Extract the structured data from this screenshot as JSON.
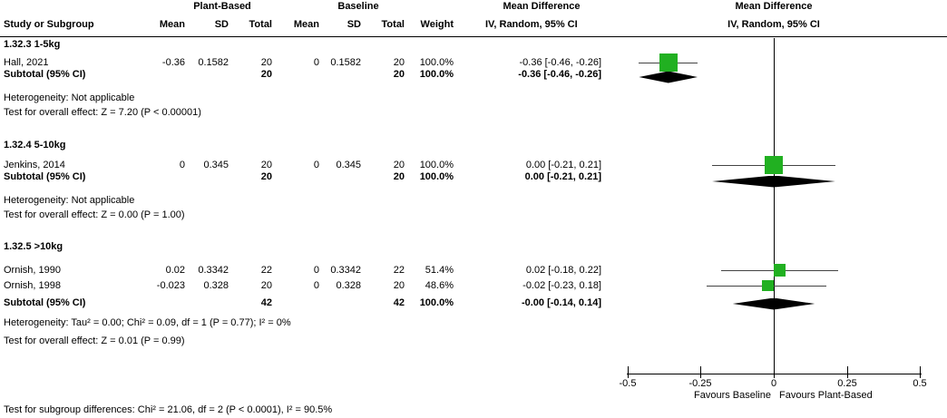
{
  "header": {
    "group_plant": "Plant-Based",
    "group_baseline": "Baseline",
    "md_text_title": "Mean Difference",
    "md_plot_title": "Mean Difference",
    "study_col": "Study or Subgroup",
    "mean1": "Mean",
    "sd1": "SD",
    "total1": "Total",
    "mean2": "Mean",
    "sd2": "SD",
    "total2": "Total",
    "weight": "Weight",
    "iv_text": "IV, Random, 95% CI",
    "iv_plot": "IV, Random, 95% CI"
  },
  "table": {
    "subgroups": [
      {
        "label": "1.32.3 1-5kg",
        "studies": [
          {
            "name": "Hall, 2021",
            "mean1": "-0.36",
            "sd1": "0.1582",
            "total1": "20",
            "mean2": "0",
            "sd2": "0.1582",
            "total2": "20",
            "weight": "100.0%",
            "ci": "-0.36 [-0.46, -0.26]"
          }
        ],
        "subtotal": {
          "label": "Subtotal (95% CI)",
          "total1": "20",
          "total2": "20",
          "weight": "100.0%",
          "ci": "-0.36 [-0.46, -0.26]"
        },
        "heterogeneity": "Heterogeneity: Not applicable",
        "overall_effect": "Test for overall effect: Z = 7.20 (P < 0.00001)"
      },
      {
        "label": "1.32.4 5-10kg",
        "studies": [
          {
            "name": "Jenkins, 2014",
            "mean1": "0",
            "sd1": "0.345",
            "total1": "20",
            "mean2": "0",
            "sd2": "0.345",
            "total2": "20",
            "weight": "100.0%",
            "ci": "0.00 [-0.21, 0.21]"
          }
        ],
        "subtotal": {
          "label": "Subtotal (95% CI)",
          "total1": "20",
          "total2": "20",
          "weight": "100.0%",
          "ci": "0.00 [-0.21, 0.21]"
        },
        "heterogeneity": "Heterogeneity: Not applicable",
        "overall_effect": "Test for overall effect: Z = 0.00 (P = 1.00)"
      },
      {
        "label": "1.32.5 >10kg",
        "studies": [
          {
            "name": "Ornish, 1990",
            "mean1": "0.02",
            "sd1": "0.3342",
            "total1": "22",
            "mean2": "0",
            "sd2": "0.3342",
            "total2": "22",
            "weight": "51.4%",
            "ci": "0.02 [-0.18, 0.22]"
          },
          {
            "name": "Ornish, 1998",
            "mean1": "-0.023",
            "sd1": "0.328",
            "total1": "20",
            "mean2": "0",
            "sd2": "0.328",
            "total2": "20",
            "weight": "48.6%",
            "ci": "-0.02 [-0.23, 0.18]"
          }
        ],
        "subtotal": {
          "label": "Subtotal (95% CI)",
          "total1": "42",
          "total2": "42",
          "weight": "100.0%",
          "ci": "-0.00 [-0.14, 0.14]"
        },
        "heterogeneity": "Heterogeneity: Tau² = 0.00; Chi² = 0.09, df = 1 (P = 0.77); I² = 0%",
        "overall_effect": "Test for overall effect: Z = 0.01 (P = 0.99)"
      }
    ],
    "footer": "Test for subgroup differences: Chi² = 21.06, df = 2 (P < 0.0001), I² = 90.5%"
  },
  "axis": {
    "tick_labels": [
      "-0.5",
      "-0.25",
      "0",
      "0.25",
      "0.5"
    ],
    "favours_left": "Favours Baseline",
    "favours_right": "Favours Plant-Based"
  },
  "chart_data": {
    "type": "forest",
    "title": "Mean Difference, IV, Random, 95% CI",
    "x_axis": {
      "min": -0.5,
      "max": 0.5,
      "ticks": [
        -0.5,
        -0.25,
        0,
        0.25,
        0.5
      ],
      "label_left": "Favours Baseline",
      "label_right": "Favours Plant-Based"
    },
    "square_color": "#21b021",
    "diamond_color": "#000000",
    "points": [
      {
        "id": "hall-2021",
        "type": "study",
        "est": -0.36,
        "lo": -0.46,
        "hi": -0.26,
        "weight_pct": 100.0
      },
      {
        "id": "subtotal-1",
        "type": "subtotal",
        "est": -0.36,
        "lo": -0.46,
        "hi": -0.26
      },
      {
        "id": "jenkins-2014",
        "type": "study",
        "est": 0.0,
        "lo": -0.21,
        "hi": 0.21,
        "weight_pct": 100.0
      },
      {
        "id": "subtotal-2",
        "type": "subtotal",
        "est": 0.0,
        "lo": -0.21,
        "hi": 0.21
      },
      {
        "id": "ornish-1990",
        "type": "study",
        "est": 0.02,
        "lo": -0.18,
        "hi": 0.22,
        "weight_pct": 51.4
      },
      {
        "id": "ornish-1998",
        "type": "study",
        "est": -0.02,
        "lo": -0.23,
        "hi": 0.18,
        "weight_pct": 48.6
      },
      {
        "id": "subtotal-3",
        "type": "subtotal",
        "est": 0.0,
        "lo": -0.14,
        "hi": 0.14
      }
    ]
  }
}
